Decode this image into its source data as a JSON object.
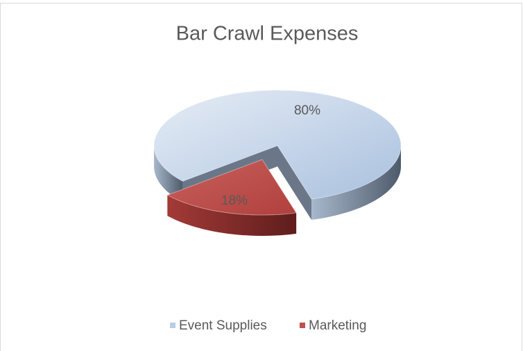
{
  "chart_data": {
    "type": "pie",
    "title": "Bar Crawl Expenses",
    "categories": [
      "Event Supplies",
      "Marketing"
    ],
    "values": [
      80,
      18
    ],
    "value_labels": [
      "80%",
      "18%"
    ],
    "colors": [
      "#b9cde5",
      "#c0504d"
    ],
    "legend": "bottom",
    "exploded": [
      false,
      true
    ]
  }
}
